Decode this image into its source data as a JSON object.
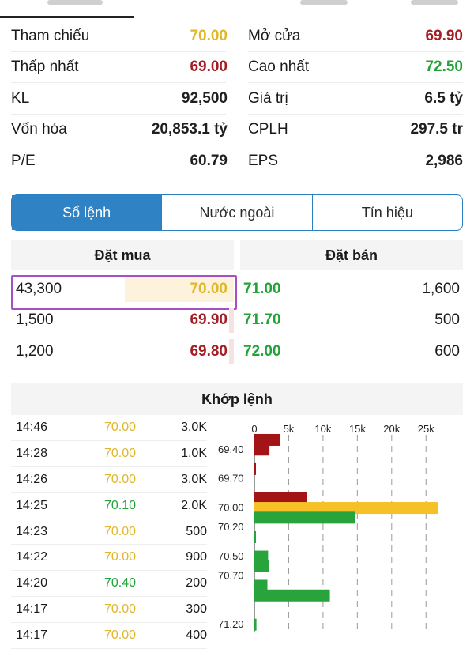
{
  "stats": [
    {
      "left_label": "Tham chiếu",
      "left_value": "70.00",
      "left_color": "yellow",
      "right_label": "Mở cửa",
      "right_value": "69.90",
      "right_color": "red"
    },
    {
      "left_label": "Thấp nhất",
      "left_value": "69.00",
      "left_color": "red",
      "right_label": "Cao nhất",
      "right_value": "72.50",
      "right_color": "green"
    },
    {
      "left_label": "KL",
      "left_value": "92,500",
      "left_color": "dark",
      "right_label": "Giá trị",
      "right_value": "6.5 tỷ",
      "right_color": "dark"
    },
    {
      "left_label": "Vốn hóa",
      "left_value": "20,853.1 tỷ",
      "left_color": "dark",
      "right_label": "CPLH",
      "right_value": "297.5 tr",
      "right_color": "dark"
    },
    {
      "left_label": "P/E",
      "left_value": "60.79",
      "left_color": "dark",
      "right_label": "EPS",
      "right_value": "2,986",
      "right_color": "dark"
    }
  ],
  "tabs": [
    {
      "label": "Sổ lệnh",
      "active": true
    },
    {
      "label": "Nước ngoài",
      "active": false
    },
    {
      "label": "Tín hiệu",
      "active": false
    }
  ],
  "order_book": {
    "buy_header": "Đặt mua",
    "sell_header": "Đặt bán",
    "rows": [
      {
        "buy_volume": "43,300",
        "buy_price": "70.00",
        "buy_color": "yellow",
        "sell_price": "71.00",
        "sell_volume": "1,600",
        "sell_color": "green"
      },
      {
        "buy_volume": "1,500",
        "buy_price": "69.90",
        "buy_color": "red",
        "sell_price": "71.70",
        "sell_volume": "500",
        "sell_color": "green"
      },
      {
        "buy_volume": "1,200",
        "buy_price": "69.80",
        "buy_color": "red",
        "sell_price": "72.00",
        "sell_volume": "600",
        "sell_color": "green"
      }
    ]
  },
  "matched": {
    "header": "Khớp lệnh",
    "trades": [
      {
        "time": "14:46",
        "price": "70.00",
        "color": "yellow",
        "volume": "3.0K"
      },
      {
        "time": "14:28",
        "price": "70.00",
        "color": "yellow",
        "volume": "1.0K"
      },
      {
        "time": "14:26",
        "price": "70.00",
        "color": "yellow",
        "volume": "3.0K"
      },
      {
        "time": "14:25",
        "price": "70.10",
        "color": "green",
        "volume": "2.0K"
      },
      {
        "time": "14:23",
        "price": "70.00",
        "color": "yellow",
        "volume": "500"
      },
      {
        "time": "14:22",
        "price": "70.00",
        "color": "yellow",
        "volume": "900"
      },
      {
        "time": "14:20",
        "price": "70.40",
        "color": "green",
        "volume": "200"
      },
      {
        "time": "14:17",
        "price": "70.00",
        "color": "yellow",
        "volume": "300"
      },
      {
        "time": "14:17",
        "price": "70.00",
        "color": "yellow",
        "volume": "400"
      }
    ]
  },
  "colors": {
    "yellow": "#e0b72b",
    "red": "#a51d24",
    "green": "#23a23a",
    "dark": "#1f1f1f",
    "accent": "#2f82c4",
    "highlight": "#a64fc7"
  },
  "chart_data": {
    "type": "bar",
    "orientation": "horizontal",
    "x_ticks": [
      "0",
      "5k",
      "10k",
      "15k",
      "20k",
      "25k"
    ],
    "x_tick_values": [
      0,
      5000,
      10000,
      15000,
      20000,
      25000
    ],
    "xlim": [
      0,
      29000
    ],
    "grid": true,
    "y_labels": [
      "69.40",
      "69.70",
      "70.00",
      "70.20",
      "70.50",
      "70.70",
      "71.20"
    ],
    "bars": [
      {
        "price": 69.3,
        "value": 3800,
        "color": "red"
      },
      {
        "price": 69.4,
        "value": 2200,
        "color": "red"
      },
      {
        "price": 69.6,
        "value": 200,
        "color": "red"
      },
      {
        "price": 69.9,
        "value": 7600,
        "color": "red"
      },
      {
        "price": 70.0,
        "value": 26700,
        "color": "yellow"
      },
      {
        "price": 70.1,
        "value": 14700,
        "color": "green"
      },
      {
        "price": 70.3,
        "value": 200,
        "color": "green"
      },
      {
        "price": 70.5,
        "value": 2000,
        "color": "green"
      },
      {
        "price": 70.6,
        "value": 2100,
        "color": "green"
      },
      {
        "price": 70.8,
        "value": 1900,
        "color": "green"
      },
      {
        "price": 70.9,
        "value": 11000,
        "color": "green"
      },
      {
        "price": 71.2,
        "value": 300,
        "color": "green"
      }
    ]
  }
}
